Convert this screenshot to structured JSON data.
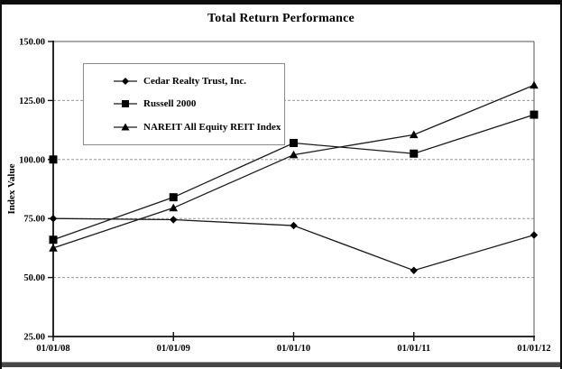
{
  "chart_data": {
    "type": "line",
    "title": "Total Return Performance",
    "ylabel": "Index Value",
    "x_labels": [
      "01/01/08",
      "01/01/09",
      "01/01/10",
      "01/01/11",
      "01/01/12"
    ],
    "y_tick_labels": [
      "150.00",
      "125.00",
      "100.00",
      "75.00",
      "50.00",
      "25.00"
    ],
    "ylim": [
      25,
      150
    ],
    "grid": "horizontal-dashed",
    "legend_position": "upper-left-inside",
    "series": [
      {
        "name": "Cedar Realty Trust, Inc.",
        "marker": "diamond",
        "values": [
          75,
          74.5,
          72,
          53,
          68
        ]
      },
      {
        "name": "Russell 2000",
        "marker": "square",
        "values": [
          66,
          84,
          107,
          102.5,
          119
        ]
      },
      {
        "name": "NAREIT All Equity REIT Index",
        "marker": "triangle",
        "values": [
          62.5,
          79.5,
          102,
          110.5,
          131.5
        ]
      }
    ],
    "stray_point": {
      "marker": "square",
      "x_label": "01/01/08",
      "value": 100
    },
    "colors": {
      "line": "#1a1a1a",
      "grid": "#9a9a9a",
      "axis": "#111111",
      "legend_border": "#8a8a8a"
    }
  }
}
